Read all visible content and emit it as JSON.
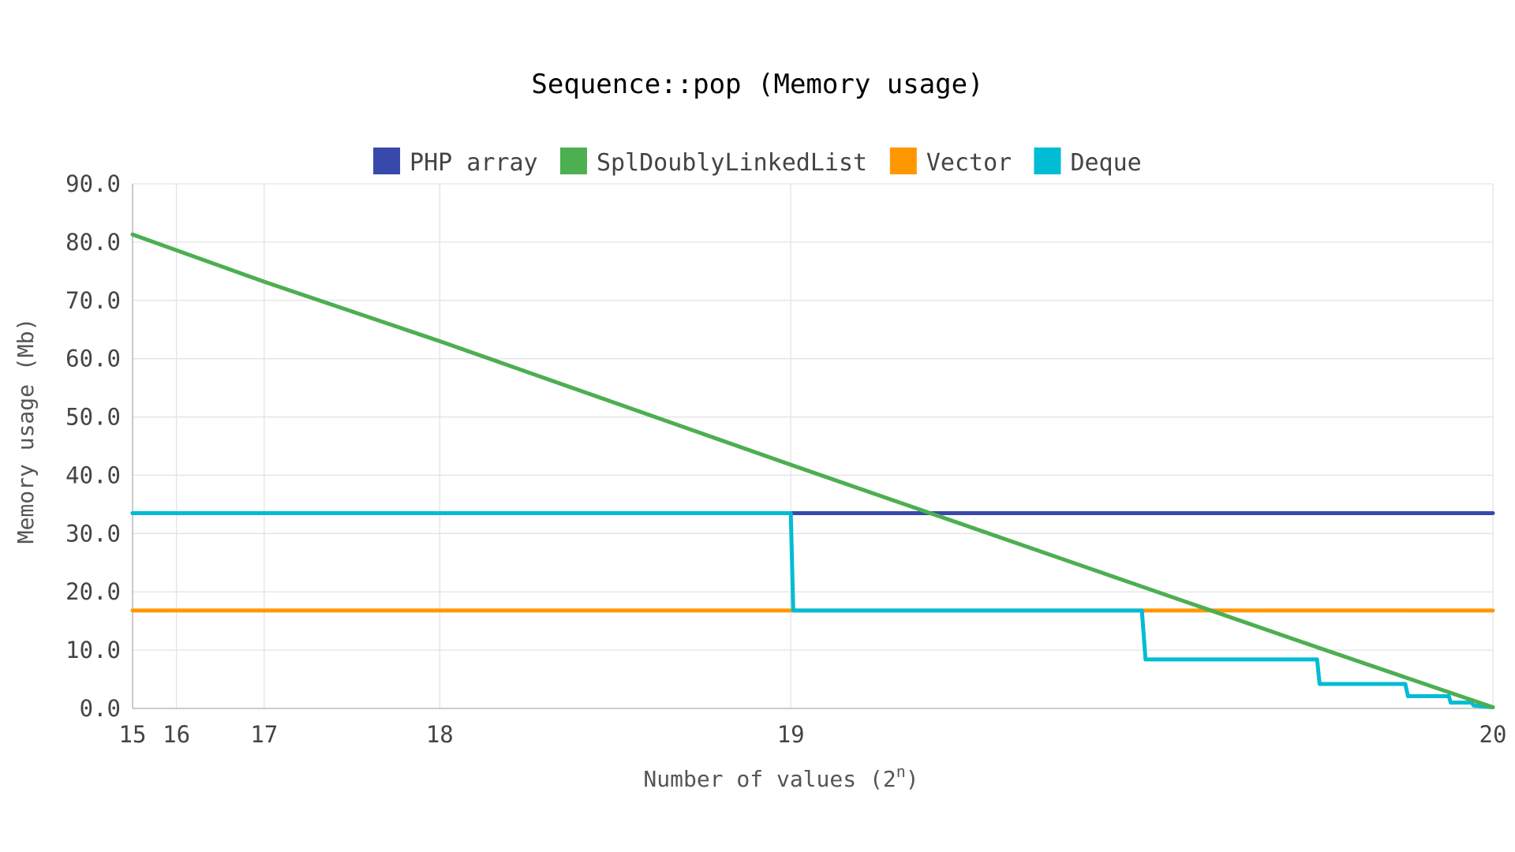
{
  "chart_data": {
    "type": "line",
    "title": "Sequence::pop (Memory usage)",
    "xlabel": "Number of values (2",
    "xlabel_sup": "n",
    "xlabel_close": ")",
    "ylabel": "Memory usage (Mb)",
    "xscale": "log2",
    "xlim": [
      15,
      20
    ],
    "ylim": [
      0,
      90
    ],
    "grid": true,
    "legend_position": "top",
    "x_ticks": [
      {
        "value": 15,
        "label": "15"
      },
      {
        "value": 16,
        "label": "16"
      },
      {
        "value": 17,
        "label": "17"
      },
      {
        "value": 18,
        "label": "18"
      },
      {
        "value": 19,
        "label": "19"
      },
      {
        "value": 20,
        "label": "20"
      }
    ],
    "y_ticks": [
      {
        "value": 0,
        "label": "0.0"
      },
      {
        "value": 10,
        "label": "10.0"
      },
      {
        "value": 20,
        "label": "20.0"
      },
      {
        "value": 30,
        "label": "30.0"
      },
      {
        "value": 40,
        "label": "40.0"
      },
      {
        "value": 50,
        "label": "50.0"
      },
      {
        "value": 60,
        "label": "60.0"
      },
      {
        "value": 70,
        "label": "70.0"
      },
      {
        "value": 80,
        "label": "80.0"
      },
      {
        "value": 90,
        "label": "90.0"
      }
    ],
    "series": [
      {
        "name": "PHP array",
        "color": "#3949ab",
        "points": [
          [
            15,
            33.5
          ],
          [
            19,
            33.5
          ],
          [
            19.585,
            33.5
          ],
          [
            20,
            33.5
          ]
        ]
      },
      {
        "name": "SplDoublyLinkedList",
        "color": "#4caf50",
        "points": [
          [
            15,
            81.3
          ],
          [
            17,
            73.2
          ],
          [
            18,
            63.0
          ],
          [
            19,
            41.8
          ],
          [
            19.585,
            20.9
          ],
          [
            19.807,
            10.5
          ],
          [
            20,
            0.2
          ]
        ]
      },
      {
        "name": "Vector",
        "color": "#ff9800",
        "points": [
          [
            15,
            16.8
          ],
          [
            19,
            16.8
          ],
          [
            19.585,
            16.8
          ],
          [
            20,
            16.8
          ]
        ]
      },
      {
        "name": "Deque",
        "color": "#00bcd4",
        "points": [
          [
            15,
            33.5
          ],
          [
            19.0,
            33.5
          ],
          [
            19.005,
            16.8
          ],
          [
            19.585,
            16.8
          ],
          [
            19.59,
            8.4
          ],
          [
            19.807,
            8.4
          ],
          [
            19.81,
            4.2
          ],
          [
            19.907,
            4.2
          ],
          [
            19.91,
            2.1
          ],
          [
            19.954,
            2.1
          ],
          [
            19.956,
            1.0
          ],
          [
            19.978,
            1.0
          ],
          [
            19.98,
            0.5
          ],
          [
            20,
            0.2
          ]
        ]
      }
    ]
  }
}
